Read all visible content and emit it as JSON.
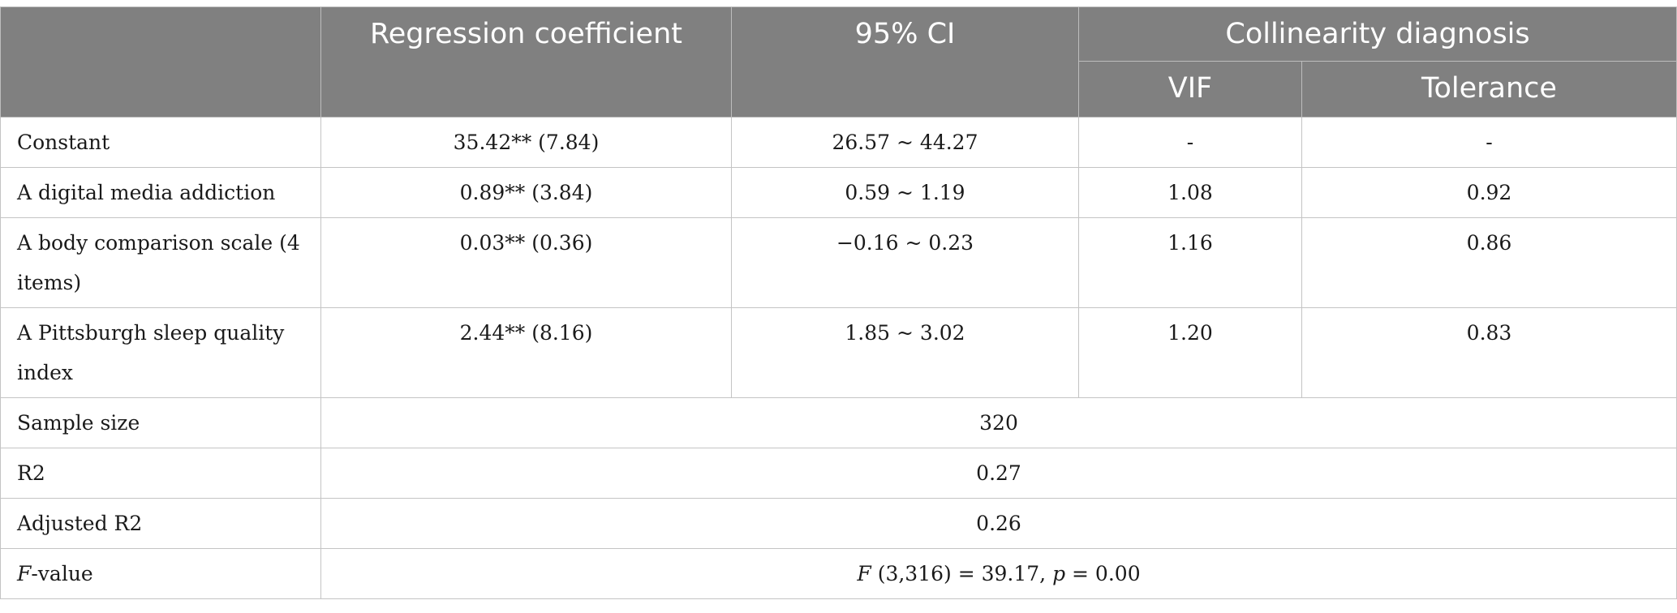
{
  "table": {
    "headers": {
      "blank": "",
      "regression_coefficient": "Regression coefficient",
      "ci": "95% CI",
      "collinearity": "Collinearity diagnosis",
      "vif": "VIF",
      "tolerance": "Tolerance"
    },
    "rows": [
      {
        "label": "Constant",
        "coef": "35.42** (7.84)",
        "ci": "26.57 ~ 44.27",
        "vif": "-",
        "tolerance": "-"
      },
      {
        "label": "A digital media addiction",
        "coef": "0.89** (3.84)",
        "ci": "0.59 ~ 1.19",
        "vif": "1.08",
        "tolerance": "0.92"
      },
      {
        "label": "A body comparison scale (4 items)",
        "coef": "0.03** (0.36)",
        "ci": "−0.16 ~ 0.23",
        "vif": "1.16",
        "tolerance": "0.86"
      },
      {
        "label": "A Pittsburgh sleep quality index",
        "coef": "2.44** (8.16)",
        "ci": "1.85 ~ 3.02",
        "vif": "1.20",
        "tolerance": "0.83"
      }
    ],
    "summary": [
      {
        "label": "Sample size",
        "value": "320"
      },
      {
        "label": "R2",
        "value": "0.27"
      },
      {
        "label": "Adjusted R2",
        "value": "0.26"
      }
    ],
    "fvalue": {
      "label_italic": "F",
      "label_rest": "-value",
      "f_italic": "F",
      "f_rest": " (3,316) = 39.17, ",
      "p_italic": "p",
      "p_rest": " = 0.00"
    }
  }
}
